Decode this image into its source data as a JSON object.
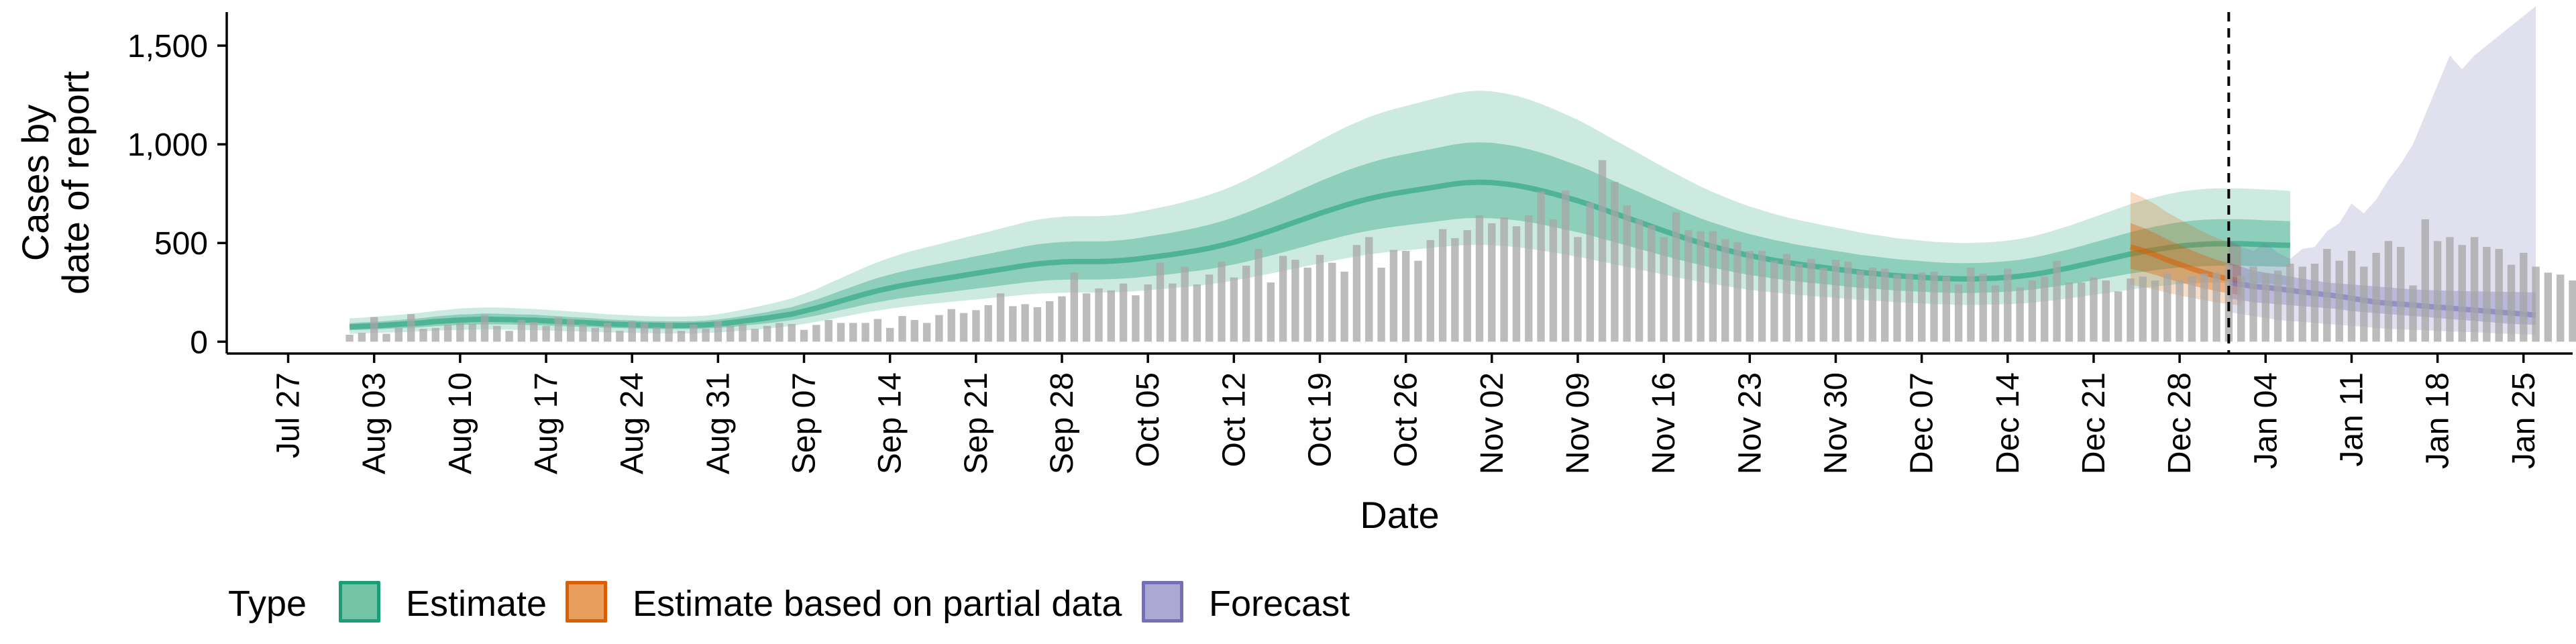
{
  "colors": {
    "estimate": "#1b9e77",
    "partial": "#d95f02",
    "forecast": "#7570b3",
    "observed_bars": "#a6a6a6",
    "forecast_line": "#000000"
  },
  "legend": {
    "title": "Type",
    "items": [
      {
        "label": "Estimate",
        "fill": "#73c4a6",
        "border": "#1b9e77"
      },
      {
        "label": "Estimate based on partial data",
        "fill": "#e89e5d",
        "border": "#d95f02"
      },
      {
        "label": "Forecast",
        "fill": "#aba8d4",
        "border": "#7570b3"
      }
    ]
  },
  "chart_data": {
    "type": "area",
    "title": "",
    "xlabel": "Date",
    "ylabel": "Cases by\ndate of report",
    "x_range": [
      "2020-07-22",
      "2021-01-29"
    ],
    "ylim": [
      -60,
      1670
    ],
    "y_ticks": [
      0,
      500,
      1000,
      1500
    ],
    "y_tick_labels": [
      "0",
      "500",
      "1,000",
      "1,500"
    ],
    "x_tick_labels": [
      "Jul 27",
      "Aug 03",
      "Aug 10",
      "Aug 17",
      "Aug 24",
      "Aug 31",
      "Sep 07",
      "Sep 14",
      "Sep 21",
      "Sep 28",
      "Oct 05",
      "Oct 12",
      "Oct 19",
      "Oct 26",
      "Nov 02",
      "Nov 09",
      "Nov 16",
      "Nov 23",
      "Nov 30",
      "Dec 07",
      "Dec 14",
      "Dec 21",
      "Dec 28",
      "Jan 04",
      "Jan 11",
      "Jan 18",
      "Jan 25"
    ],
    "x_ticks": [
      "2020-07-27",
      "2020-08-03",
      "2020-08-10",
      "2020-08-17",
      "2020-08-24",
      "2020-08-31",
      "2020-09-07",
      "2020-09-14",
      "2020-09-21",
      "2020-09-28",
      "2020-10-05",
      "2020-10-12",
      "2020-10-19",
      "2020-10-26",
      "2020-11-02",
      "2020-11-09",
      "2020-11-16",
      "2020-11-23",
      "2020-11-30",
      "2020-12-07",
      "2020-12-14",
      "2020-12-21",
      "2020-12-28",
      "2021-01-04",
      "2021-01-11",
      "2021-01-18",
      "2021-01-25"
    ],
    "forecast_start": "2021-01-01",
    "grid": false,
    "legend_position": "bottom",
    "observed_bars": {
      "start": "2020-08-01",
      "values": [
        35,
        45,
        125,
        40,
        70,
        140,
        65,
        70,
        85,
        95,
        90,
        135,
        80,
        55,
        110,
        100,
        80,
        125,
        115,
        90,
        70,
        95,
        55,
        105,
        95,
        75,
        95,
        55,
        85,
        65,
        105,
        80,
        90,
        65,
        80,
        95,
        90,
        60,
        85,
        110,
        95,
        95,
        95,
        115,
        70,
        130,
        110,
        95,
        135,
        165,
        145,
        160,
        185,
        245,
        180,
        190,
        175,
        205,
        230,
        350,
        245,
        270,
        260,
        295,
        235,
        290,
        400,
        295,
        380,
        290,
        340,
        405,
        325,
        385,
        470,
        300,
        435,
        415,
        375,
        440,
        400,
        355,
        490,
        530,
        375,
        465,
        460,
        410,
        515,
        570,
        525,
        565,
        640,
        600,
        630,
        585,
        640,
        760,
        620,
        765,
        530,
        705,
        920,
        810,
        690,
        620,
        590,
        530,
        655,
        565,
        560,
        560,
        520,
        505,
        460,
        460,
        410,
        445,
        395,
        420,
        375,
        415,
        405,
        360,
        375,
        370,
        340,
        345,
        350,
        355,
        330,
        290,
        375,
        345,
        285,
        370,
        275,
        310,
        330,
        410,
        300,
        300,
        325,
        310,
        255,
        320,
        330,
        310,
        345,
        310,
        330,
        345,
        350,
        390,
        335,
        380,
        345,
        360,
        395,
        380,
        395,
        470,
        410,
        460,
        380,
        450,
        510,
        480,
        285,
        620,
        510,
        530,
        490,
        530,
        480,
        470,
        390,
        450,
        380,
        350,
        340,
        310,
        290,
        280,
        250,
        245,
        240,
        260
      ]
    },
    "series": [
      {
        "name": "Estimate",
        "start": "2020-08-01",
        "median": [
          75,
          78,
          80,
          84,
          88,
          92,
          96,
          102,
          106,
          110,
          112,
          114,
          113,
          112,
          110,
          109,
          106,
          103,
          100,
          97,
          94,
          90,
          88,
          86,
          84,
          83,
          82,
          82,
          83,
          85,
          90,
          96,
          104,
          112,
          120,
          130,
          140,
          155,
          170,
          188,
          206,
          224,
          242,
          258,
          272,
          285,
          296,
          306,
          316,
          326,
          336,
          346,
          356,
          366,
          376,
          386,
          394,
          400,
          404,
          406,
          406,
          406,
          408,
          412,
          418,
          426,
          434,
          442,
          452,
          462,
          474,
          488,
          504,
          522,
          542,
          562,
          584,
          606,
          628,
          650,
          670,
          690,
          708,
          724,
          738,
          750,
          760,
          770,
          780,
          790,
          800,
          806,
          808,
          806,
          800,
          792,
          780,
          766,
          750,
          732,
          714,
          694,
          672,
          650,
          628,
          606,
          584,
          562,
          540,
          520,
          500,
          482,
          466,
          450,
          436,
          424,
          412,
          402,
          392,
          384,
          376,
          368,
          360,
          352,
          346,
          340,
          334,
          330,
          326,
          322,
          320,
          318,
          318,
          320,
          322,
          326,
          332,
          340,
          350,
          362,
          374,
          388,
          402,
          416,
          430,
          444,
          456,
          466,
          476,
          484,
          490,
          494,
          496,
          496,
          496,
          494,
          492,
          490,
          488
        ],
        "low90": [
          40,
          42,
          44,
          46,
          48,
          50,
          53,
          56,
          58,
          60,
          61,
          62,
          62,
          61,
          60,
          59,
          57,
          55,
          53,
          51,
          49,
          47,
          46,
          45,
          44,
          43,
          42,
          42,
          43,
          44,
          47,
          51,
          56,
          61,
          66,
          73,
          80,
          90,
          100,
          112,
          124,
          136,
          148,
          158,
          167,
          176,
          183,
          190,
          196,
          202,
          208,
          214,
          220,
          226,
          232,
          238,
          243,
          246,
          248,
          249,
          249,
          249,
          250,
          252,
          256,
          261,
          266,
          271,
          277,
          283,
          291,
          300,
          310,
          321,
          333,
          345,
          358,
          371,
          384,
          397,
          409,
          421,
          432,
          442,
          450,
          457,
          463,
          469,
          475,
          481,
          487,
          490,
          491,
          489,
          485,
          479,
          471,
          462,
          452,
          441,
          430,
          418,
          405,
          392,
          379,
          366,
          353,
          340,
          327,
          315,
          303,
          292,
          282,
          272,
          263,
          256,
          249,
          243,
          237,
          232,
          227,
          222,
          217,
          212,
          208,
          204,
          200,
          197,
          194,
          191,
          189,
          187,
          186,
          187,
          188,
          190,
          193,
          198,
          204,
          211,
          219,
          228,
          237,
          246,
          255,
          264,
          272,
          279,
          286,
          292,
          296,
          299,
          300,
          300,
          299,
          297,
          294,
          290,
          286
        ],
        "high90": [
          118,
          122,
          126,
          131,
          136,
          142,
          148,
          156,
          162,
          168,
          171,
          174,
          173,
          171,
          168,
          166,
          162,
          158,
          153,
          149,
          144,
          139,
          136,
          133,
          130,
          128,
          127,
          127,
          129,
          132,
          140,
          150,
          162,
          175,
          188,
          203,
          219,
          242,
          266,
          294,
          322,
          350,
          378,
          403,
          425,
          446,
          463,
          479,
          494,
          510,
          526,
          542,
          557,
          573,
          589,
          605,
          618,
          627,
          633,
          636,
          636,
          636,
          639,
          645,
          655,
          667,
          680,
          693,
          709,
          725,
          744,
          766,
          791,
          820,
          852,
          884,
          918,
          952,
          986,
          1020,
          1052,
          1084,
          1112,
          1138,
          1160,
          1178,
          1194,
          1210,
          1226,
          1242,
          1258,
          1268,
          1272,
          1268,
          1259,
          1246,
          1227,
          1205,
          1180,
          1152,
          1124,
          1092,
          1057,
          1022,
          988,
          954,
          918,
          884,
          850,
          818,
          786,
          758,
          732,
          707,
          685,
          666,
          647,
          631,
          616,
          603,
          590,
          578,
          566,
          553,
          543,
          534,
          524,
          518,
          512,
          506,
          503,
          500,
          500,
          503,
          506,
          512,
          521,
          533,
          549,
          568,
          587,
          609,
          631,
          653,
          675,
          697,
          716,
          731,
          747,
          759,
          768,
          774,
          777,
          777,
          777,
          774,
          771,
          768,
          764
        ],
        "low50": [
          58,
          60,
          62,
          65,
          68,
          71,
          74,
          79,
          82,
          85,
          87,
          88,
          88,
          87,
          85,
          84,
          82,
          80,
          77,
          75,
          73,
          70,
          68,
          67,
          65,
          64,
          64,
          64,
          64,
          66,
          70,
          74,
          81,
          87,
          93,
          101,
          109,
          120,
          132,
          146,
          160,
          174,
          188,
          200,
          211,
          221,
          230,
          238,
          245,
          253,
          261,
          269,
          276,
          284,
          292,
          300,
          306,
          311,
          314,
          315,
          315,
          315,
          317,
          320,
          324,
          331,
          337,
          343,
          351,
          359,
          368,
          379,
          391,
          405,
          421,
          436,
          453,
          470,
          487,
          505,
          520,
          536,
          550,
          562,
          573,
          582,
          590,
          598,
          605,
          613,
          621,
          626,
          627,
          625,
          621,
          615,
          606,
          595,
          582,
          568,
          554,
          539,
          522,
          505,
          487,
          470,
          453,
          436,
          419,
          404,
          388,
          374,
          362,
          349,
          338,
          329,
          320,
          312,
          304,
          298,
          292,
          286,
          279,
          273,
          269,
          264,
          259,
          256,
          253,
          250,
          248,
          247,
          247,
          248,
          250,
          253,
          258,
          264,
          272,
          281,
          290,
          301,
          312,
          323,
          334,
          345,
          354,
          362,
          370,
          376,
          380,
          383,
          385,
          385,
          385,
          383,
          382,
          380,
          379
        ],
        "high50": [
          94,
          98,
          100,
          105,
          110,
          115,
          120,
          128,
          133,
          138,
          140,
          143,
          142,
          140,
          138,
          137,
          133,
          129,
          125,
          122,
          118,
          113,
          110,
          108,
          105,
          104,
          103,
          103,
          104,
          107,
          113,
          120,
          130,
          140,
          150,
          163,
          175,
          194,
          213,
          235,
          258,
          280,
          303,
          323,
          340,
          356,
          370,
          383,
          395,
          408,
          420,
          433,
          445,
          458,
          470,
          483,
          493,
          500,
          505,
          508,
          508,
          508,
          510,
          515,
          523,
          533,
          543,
          553,
          565,
          578,
          593,
          610,
          630,
          653,
          678,
          703,
          730,
          758,
          785,
          813,
          838,
          863,
          885,
          905,
          923,
          938,
          950,
          963,
          975,
          988,
          1000,
          1008,
          1010,
          1008,
          1000,
          990,
          975,
          958,
          938,
          915,
          893,
          868,
          840,
          813,
          785,
          758,
          730,
          703,
          675,
          650,
          625,
          603,
          583,
          563,
          545,
          530,
          515,
          503,
          490,
          480,
          470,
          460,
          450,
          440,
          433,
          425,
          418,
          413,
          408,
          403,
          400,
          398,
          398,
          400,
          403,
          408,
          415,
          425,
          438,
          453,
          468,
          485,
          503,
          520,
          538,
          555,
          570,
          583,
          595,
          605,
          613,
          618,
          620,
          620,
          620,
          618,
          615,
          613,
          610
        ]
      },
      {
        "name": "Estimate based on partial data",
        "start": "2020-12-24",
        "median": [
          480,
          462,
          440,
          414,
          392,
          370,
          350,
          332,
          318,
          306
        ],
        "low90": [
          288,
          277,
          264,
          248,
          235,
          222,
          210,
          199,
          191,
          184
        ],
        "high90": [
          760,
          731,
          697,
          655,
          621,
          586,
          554,
          526,
          504,
          485
        ],
        "low50": [
          370,
          356,
          339,
          319,
          302,
          285,
          270,
          256,
          245,
          236
        ],
        "high50": [
          600,
          578,
          550,
          518,
          490,
          463,
          438,
          415,
          398,
          383
        ]
      },
      {
        "name": "Forecast",
        "start": "2021-01-01",
        "median": [
          300,
          290,
          280,
          275,
          268,
          260,
          252,
          245,
          238,
          230,
          220,
          210,
          200,
          195,
          190,
          185,
          180,
          175,
          170,
          165,
          160,
          155,
          150,
          145,
          140,
          135
        ],
        "low90": [
          150,
          140,
          130,
          120,
          110,
          105,
          100,
          95,
          90,
          85,
          80,
          75,
          70,
          65,
          62,
          60,
          58,
          55,
          52,
          50,
          48,
          45,
          42,
          40,
          38,
          35
        ],
        "high90": [
          520,
          480,
          460,
          500,
          450,
          420,
          470,
          480,
          560,
          600,
          700,
          650,
          720,
          820,
          900,
          1000,
          1150,
          1300,
          1450,
          1380,
          1450,
          1500,
          1550,
          1600,
          1650,
          1700
        ],
        "low50": [
          220,
          210,
          200,
          195,
          190,
          185,
          180,
          175,
          170,
          165,
          155,
          150,
          145,
          140,
          135,
          130,
          125,
          120,
          115,
          110,
          105,
          100,
          95,
          90,
          88,
          85
        ],
        "high50": [
          400,
          380,
          360,
          350,
          340,
          330,
          320,
          310,
          300,
          295,
          290,
          285,
          280,
          275,
          270,
          265,
          262,
          260,
          258,
          256,
          255,
          254,
          253,
          252,
          251,
          250
        ]
      }
    ]
  }
}
